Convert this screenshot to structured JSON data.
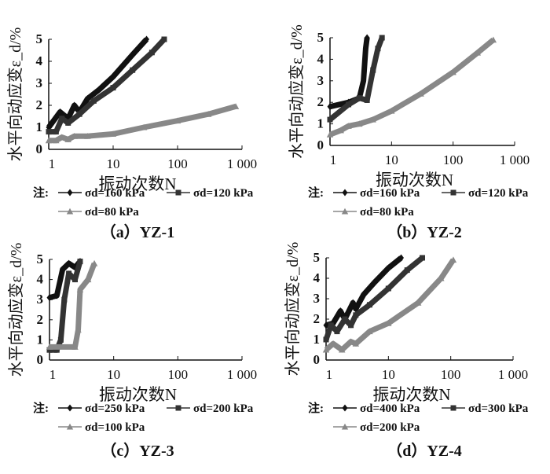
{
  "chart_data": [
    {
      "type": "line",
      "title": "（a）YZ-1",
      "xlabel": "振动次数N",
      "ylabel": "水平向动应变ε_d/%",
      "xscale": "log",
      "xlim": [
        1,
        1000
      ],
      "ylim": [
        0,
        5
      ],
      "xticks": [
        "1",
        "10",
        "100",
        "1 000"
      ],
      "yticks": [
        "0",
        "1",
        "2",
        "3",
        "4",
        "5"
      ],
      "legend_prefix": "注:",
      "series": [
        {
          "name": "σd=160 kPa",
          "marker": "diamond",
          "color": "#111111",
          "x": [
            1,
            1.5,
            2,
            2.5,
            3,
            4,
            6,
            10,
            20,
            33
          ],
          "y": [
            1.0,
            1.7,
            1.4,
            2.0,
            1.7,
            2.3,
            2.7,
            3.3,
            4.3,
            5.0
          ]
        },
        {
          "name": "σd=120 kPa",
          "marker": "square",
          "color": "#333333",
          "x": [
            1,
            1.3,
            1.6,
            2,
            3,
            5,
            10,
            20,
            40,
            62
          ],
          "y": [
            0.8,
            0.8,
            1.4,
            1.2,
            1.6,
            2.2,
            2.8,
            3.6,
            4.4,
            5.0
          ]
        },
        {
          "name": "σd=80 kPa",
          "marker": "triangle",
          "color": "#888888",
          "x": [
            1,
            1.3,
            1.6,
            2,
            2.5,
            4,
            10,
            30,
            100,
            300,
            800
          ],
          "y": [
            0.4,
            0.4,
            0.55,
            0.45,
            0.6,
            0.6,
            0.7,
            1.0,
            1.3,
            1.6,
            1.95
          ]
        }
      ]
    },
    {
      "type": "line",
      "title": "（b）YZ-2",
      "xlabel": "振动次数N",
      "ylabel": "水平向动应变ε_d/%",
      "xscale": "log",
      "xlim": [
        1,
        1000
      ],
      "ylim": [
        0,
        5
      ],
      "xticks": [
        "1",
        "10",
        "100",
        "1 000"
      ],
      "yticks": [
        "0",
        "1",
        "2",
        "3",
        "4",
        "5"
      ],
      "legend_prefix": "注:",
      "series": [
        {
          "name": "σd=160 kPa",
          "marker": "diamond",
          "color": "#111111",
          "x": [
            1,
            2,
            3,
            3.5,
            3.8,
            4
          ],
          "y": [
            1.8,
            2.0,
            2.2,
            3.0,
            4.5,
            5.0
          ]
        },
        {
          "name": "σd=120 kPa",
          "marker": "square",
          "color": "#333333",
          "x": [
            1,
            2,
            3,
            4,
            5,
            6,
            7
          ],
          "y": [
            1.2,
            1.9,
            2.2,
            2.1,
            3.5,
            4.5,
            5.0
          ]
        },
        {
          "name": "σd=80 kPa",
          "marker": "triangle",
          "color": "#888888",
          "x": [
            1,
            1.5,
            2,
            3,
            5,
            10,
            30,
            100,
            250,
            450
          ],
          "y": [
            0.5,
            0.7,
            0.9,
            1.0,
            1.2,
            1.6,
            2.4,
            3.4,
            4.3,
            4.9
          ]
        }
      ]
    },
    {
      "type": "line",
      "title": "（c）YZ-3",
      "xlabel": "振动次数N",
      "ylabel": "水平向动应变ε_d/%",
      "xscale": "log",
      "xlim": [
        1,
        1000
      ],
      "ylim": [
        0,
        5
      ],
      "xticks": [
        "1",
        "10",
        "100",
        "1 000"
      ],
      "yticks": [
        "0",
        "1",
        "2",
        "3",
        "4",
        "5"
      ],
      "legend_prefix": "注:",
      "series": [
        {
          "name": "σd=250 kPa",
          "marker": "diamond",
          "color": "#111111",
          "x": [
            1,
            1.3,
            1.6,
            2,
            2.5,
            3
          ],
          "y": [
            3.1,
            3.2,
            4.5,
            4.8,
            4.6,
            4.9
          ]
        },
        {
          "name": "σd=200 kPa",
          "marker": "square",
          "color": "#333333",
          "x": [
            1,
            1.3,
            1.5,
            1.7,
            2,
            2.5,
            3
          ],
          "y": [
            0.5,
            0.5,
            1.0,
            3.0,
            4.3,
            4.0,
            4.9
          ]
        },
        {
          "name": "σd=100 kPa",
          "marker": "triangle",
          "color": "#888888",
          "x": [
            1,
            2.5,
            2.8,
            3,
            4,
            5
          ],
          "y": [
            0.65,
            0.65,
            1.5,
            3.5,
            4.0,
            4.8
          ]
        }
      ]
    },
    {
      "type": "line",
      "title": "（d）YZ-4",
      "xlabel": "振动次数N",
      "ylabel": "水平向动应变ε_d/%",
      "xscale": "log",
      "xlim": [
        1,
        1000
      ],
      "ylim": [
        0,
        5
      ],
      "xticks": [
        "1",
        "10",
        "100",
        "1 000"
      ],
      "yticks": [
        "0",
        "1",
        "2",
        "3",
        "4",
        "5"
      ],
      "legend_prefix": "注:",
      "series": [
        {
          "name": "σd=400 kPa",
          "marker": "diamond",
          "color": "#111111",
          "x": [
            1,
            1.3,
            1.7,
            2,
            2.7,
            3,
            4,
            6,
            10,
            16
          ],
          "y": [
            1.7,
            1.8,
            2.4,
            2.0,
            2.8,
            2.5,
            3.2,
            3.8,
            4.5,
            5.0
          ]
        },
        {
          "name": "σd=300 kPa",
          "marker": "square",
          "color": "#333333",
          "x": [
            1,
            1.2,
            1.5,
            2,
            2.5,
            3,
            5,
            10,
            20,
            35
          ],
          "y": [
            1.0,
            1.7,
            1.4,
            2.0,
            1.7,
            2.2,
            2.7,
            3.5,
            4.4,
            5.0
          ]
        },
        {
          "name": "σd=200 kPa",
          "marker": "triangle",
          "color": "#888888",
          "x": [
            1,
            1.3,
            1.8,
            2.5,
            3,
            5,
            10,
            30,
            70,
            110
          ],
          "y": [
            0.5,
            0.8,
            0.5,
            0.9,
            0.8,
            1.4,
            1.8,
            2.8,
            4.0,
            4.9
          ]
        }
      ]
    }
  ]
}
